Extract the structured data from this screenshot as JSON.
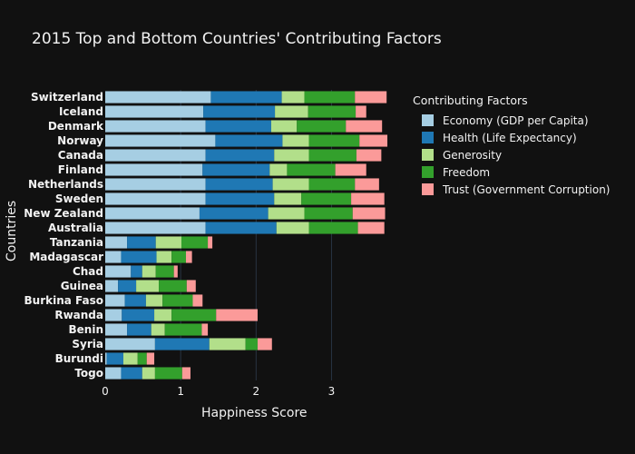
{
  "chart_data": {
    "type": "bar",
    "orientation": "horizontal",
    "stacked": true,
    "title": "2015 Top and Bottom Countries' Contributing Factors",
    "xlabel": "Happiness Score",
    "ylabel": "Countries",
    "xlim": [
      0,
      3.8
    ],
    "xticks": [
      "0",
      "1",
      "2",
      "3"
    ],
    "grid": true,
    "legend_title": "Contributing Factors",
    "legend_placement": "right",
    "categories": [
      "Switzerland",
      "Iceland",
      "Denmark",
      "Norway",
      "Canada",
      "Finland",
      "Netherlands",
      "Sweden",
      "New Zealand",
      "Australia",
      "Tanzania",
      "Madagascar",
      "Chad",
      "Guinea",
      "Burkina Faso",
      "Rwanda",
      "Benin",
      "Syria",
      "Burundi",
      "Togo"
    ],
    "series": [
      {
        "name": "Economy (GDP per Capita)",
        "color": "#a6cee3",
        "values": [
          1.4,
          1.3,
          1.33,
          1.46,
          1.33,
          1.29,
          1.33,
          1.33,
          1.25,
          1.33,
          0.29,
          0.21,
          0.34,
          0.17,
          0.26,
          0.22,
          0.29,
          0.66,
          0.02,
          0.21
        ]
      },
      {
        "name": "Health (Life Expectancy)",
        "color": "#1f78b4",
        "values": [
          0.94,
          0.95,
          0.87,
          0.89,
          0.91,
          0.89,
          0.89,
          0.91,
          0.91,
          0.94,
          0.38,
          0.47,
          0.15,
          0.24,
          0.28,
          0.43,
          0.32,
          0.72,
          0.22,
          0.28
        ]
      },
      {
        "name": "Generosity",
        "color": "#b2df8a",
        "values": [
          0.3,
          0.44,
          0.34,
          0.35,
          0.46,
          0.23,
          0.48,
          0.36,
          0.48,
          0.43,
          0.34,
          0.2,
          0.18,
          0.3,
          0.22,
          0.23,
          0.18,
          0.48,
          0.19,
          0.17
        ]
      },
      {
        "name": "Freedom",
        "color": "#33a02c",
        "values": [
          0.67,
          0.63,
          0.65,
          0.67,
          0.63,
          0.64,
          0.61,
          0.66,
          0.64,
          0.65,
          0.35,
          0.19,
          0.24,
          0.37,
          0.4,
          0.59,
          0.49,
          0.16,
          0.12,
          0.36
        ]
      },
      {
        "name": "Trust (Government Corruption)",
        "color": "#fb9a99",
        "values": [
          0.42,
          0.14,
          0.48,
          0.37,
          0.33,
          0.41,
          0.32,
          0.44,
          0.43,
          0.35,
          0.06,
          0.08,
          0.05,
          0.12,
          0.13,
          0.55,
          0.08,
          0.19,
          0.1,
          0.11
        ]
      }
    ]
  }
}
